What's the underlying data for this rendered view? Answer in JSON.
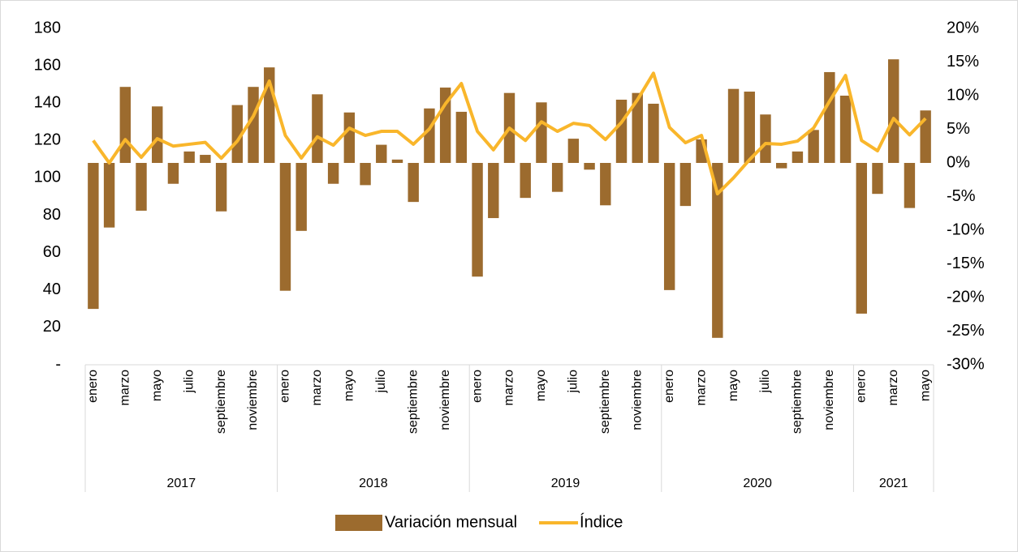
{
  "chart_data": {
    "type": "bar-line",
    "category_groups": [
      {
        "label": "2017",
        "categories": [
          "enero",
          null,
          "marzo",
          null,
          "mayo",
          null,
          "julio",
          null,
          "septiembre",
          null,
          "noviembre",
          null
        ]
      },
      {
        "label": "2018",
        "categories": [
          "enero",
          null,
          "marzo",
          null,
          "mayo",
          null,
          "julio",
          null,
          "septiembre",
          null,
          "noviembre",
          null
        ]
      },
      {
        "label": "2019",
        "categories": [
          "enero",
          null,
          "marzo",
          null,
          "mayo",
          null,
          "julio",
          null,
          "septiembre",
          null,
          "noviembre",
          null
        ]
      },
      {
        "label": "2020",
        "categories": [
          "enero",
          null,
          "marzo",
          null,
          "mayo",
          null,
          "julio",
          null,
          "septiembre",
          null,
          "noviembre",
          null
        ]
      },
      {
        "label": "2021",
        "categories": [
          "enero",
          null,
          "marzo",
          null,
          "mayo"
        ]
      }
    ],
    "series": [
      {
        "name": "Variación mensual",
        "type": "bar",
        "axis": "y2",
        "color": "#9c6b2e",
        "values": [
          -21.7,
          -9.6,
          11.3,
          -7.1,
          8.4,
          -3.1,
          1.7,
          1.2,
          -7.2,
          8.6,
          11.3,
          14.2,
          -19.0,
          -10.1,
          10.2,
          -3.1,
          7.5,
          -3.3,
          2.7,
          0.5,
          -5.8,
          8.1,
          11.2,
          7.6,
          -16.9,
          -8.2,
          10.4,
          -5.2,
          9.0,
          -4.3,
          3.6,
          -1.0,
          -6.3,
          9.4,
          10.4,
          8.8,
          -18.9,
          -6.4,
          3.5,
          -26.0,
          11.0,
          10.6,
          7.2,
          -0.8,
          1.7,
          4.9,
          13.5,
          10.0,
          -22.4,
          -4.6,
          15.4,
          -6.7,
          7.8
        ]
      },
      {
        "name": "Índice",
        "type": "line",
        "axis": "y",
        "color": "#f9b62b",
        "values": [
          120.0,
          108.0,
          120.5,
          111.0,
          121.0,
          117.0,
          118.0,
          119.0,
          110.5,
          119.7,
          133.0,
          151.8,
          122.7,
          110.6,
          122.0,
          117.5,
          126.6,
          122.7,
          124.9,
          124.9,
          118.0,
          126.2,
          139.6,
          150.5,
          124.9,
          115.0,
          126.6,
          120.0,
          130.0,
          124.9,
          129.2,
          128.0,
          120.5,
          129.7,
          141.8,
          156.0,
          127.0,
          118.8,
          122.7,
          91.5,
          100.0,
          109.7,
          118.4,
          118.0,
          119.7,
          126.6,
          141.0,
          154.8,
          120.0,
          114.5,
          131.8,
          123.0,
          131.8
        ]
      }
    ],
    "ylim": [
      0,
      180
    ],
    "yticks": [
      {
        "value": 0,
        "label": "-"
      },
      20,
      40,
      60,
      80,
      100,
      120,
      140,
      160,
      180
    ],
    "y2lim": [
      -30,
      20
    ],
    "y2ticks": [
      {
        "value": -30,
        "label": "-30%"
      },
      {
        "value": -25,
        "label": "-25%"
      },
      {
        "value": -20,
        "label": "-20%"
      },
      {
        "value": -15,
        "label": "-15%"
      },
      {
        "value": -10,
        "label": "-10%"
      },
      {
        "value": -5,
        "label": "-5%"
      },
      {
        "value": 0,
        "label": "0%"
      },
      {
        "value": 5,
        "label": "5%"
      },
      {
        "value": 10,
        "label": "10%"
      },
      {
        "value": 15,
        "label": "15%"
      },
      {
        "value": 20,
        "label": "20%"
      }
    ],
    "grid": false,
    "legend": "bottom"
  }
}
